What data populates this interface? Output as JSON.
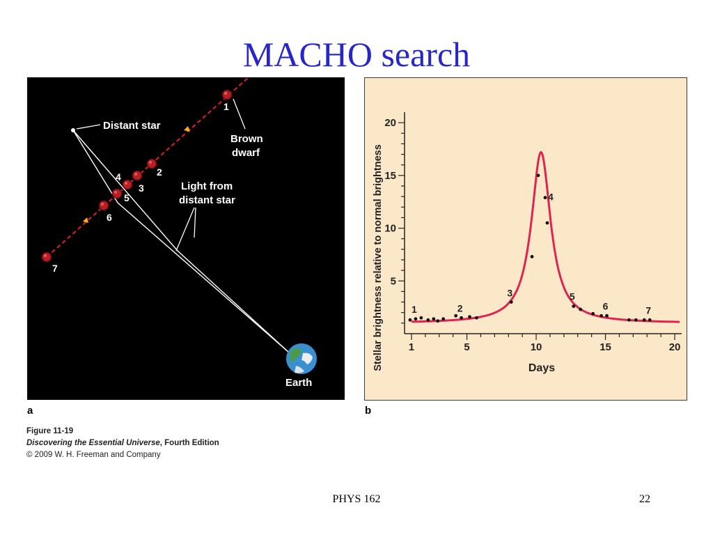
{
  "slide": {
    "title": "MACHO search",
    "title_color": "#2727c9",
    "footer_course": "PHYS 162",
    "page_number": "22"
  },
  "panel_a": {
    "letter": "a",
    "distant_star_label": "Distant star",
    "brown_dwarf_label_line1": "Brown",
    "brown_dwarf_label_line2": "dwarf",
    "light_label_line1": "Light from",
    "light_label_line2": "distant star",
    "earth_label": "Earth",
    "positions": [
      "1",
      "2",
      "3",
      "4",
      "5",
      "6",
      "7"
    ],
    "dwarf_path_color": "#d11f25",
    "background_color": "#000000"
  },
  "panel_b": {
    "letter": "b",
    "background_color": "#fbe8c8",
    "curve_color": "#e0234e"
  },
  "caption": {
    "figure": "Figure 11-19",
    "book_title": "Discovering the Essential Universe",
    "book_edition": ", Fourth Edition",
    "copyright": "© 2009 W. H. Freeman and Company"
  },
  "chart_data": {
    "type": "line",
    "xlabel": "Days",
    "ylabel": "Stellar brightness relative to normal brightness",
    "xlim": [
      0.5,
      20.5
    ],
    "ylim": [
      0,
      21
    ],
    "xticks": [
      1,
      5,
      10,
      15,
      20
    ],
    "yticks": [
      5,
      10,
      15,
      20
    ],
    "peak": {
      "x": 10.35,
      "y": 17.2
    },
    "baseline": 1.0,
    "observations": {
      "x": [
        0.9,
        1.3,
        1.7,
        2.2,
        2.6,
        2.9,
        3.3,
        4.2,
        4.6,
        5.2,
        5.7,
        8.2,
        9.7,
        10.15,
        10.65,
        10.8,
        12.7,
        13.2,
        14.1,
        14.7,
        15.1,
        16.7,
        17.2,
        17.8,
        18.2
      ],
      "y": [
        1.3,
        1.4,
        1.5,
        1.3,
        1.4,
        1.2,
        1.4,
        1.7,
        1.5,
        1.6,
        1.5,
        3.0,
        7.3,
        15.0,
        12.9,
        10.5,
        2.6,
        2.3,
        1.9,
        1.7,
        1.7,
        1.3,
        1.3,
        1.3,
        1.3
      ]
    },
    "point_labels": [
      {
        "label": "1",
        "x": 1.3,
        "y": 1.4
      },
      {
        "label": "2",
        "x": 4.6,
        "y": 1.5
      },
      {
        "label": "3",
        "x": 8.2,
        "y": 3.0
      },
      {
        "label": "4",
        "x": 10.65,
        "y": 12.9
      },
      {
        "label": "5",
        "x": 12.7,
        "y": 2.6
      },
      {
        "label": "6",
        "x": 15.1,
        "y": 1.7
      },
      {
        "label": "7",
        "x": 18.2,
        "y": 1.3
      }
    ],
    "grid": false,
    "legend": "none"
  }
}
